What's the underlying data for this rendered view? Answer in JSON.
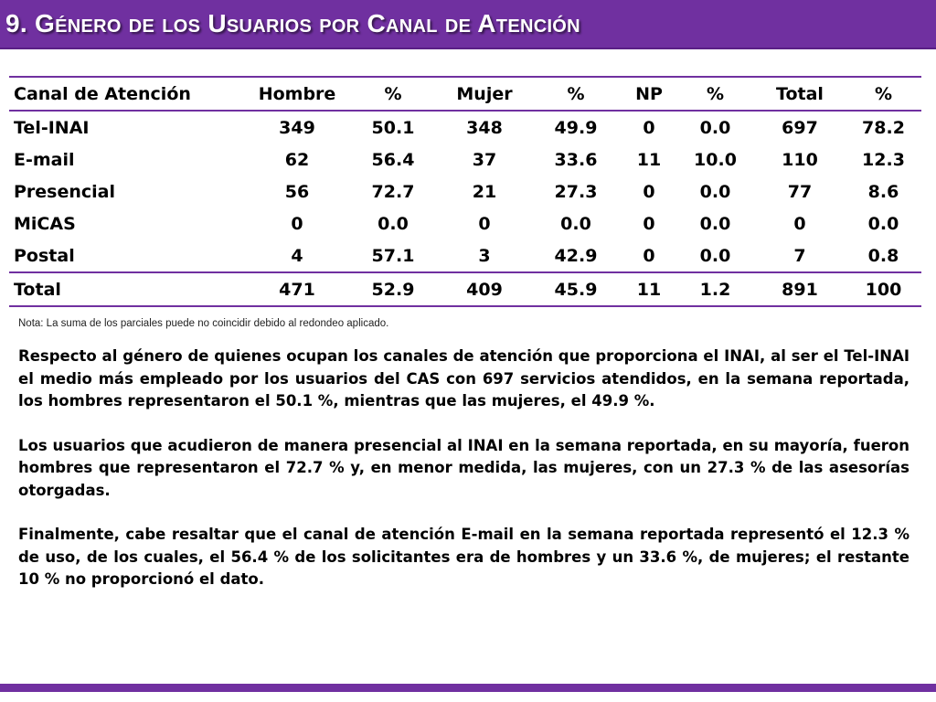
{
  "title": "9. Género de los Usuarios por Canal de Atención",
  "table": {
    "headers": [
      "Canal de Atención",
      "Hombre",
      "%",
      "Mujer",
      "%",
      "NP",
      "%",
      "Total",
      "%"
    ],
    "rows": [
      [
        "Tel-INAI",
        "349",
        "50.1",
        "348",
        "49.9",
        "0",
        "0.0",
        "697",
        "78.2"
      ],
      [
        "E-mail",
        "62",
        "56.4",
        "37",
        "33.6",
        "11",
        "10.0",
        "110",
        "12.3"
      ],
      [
        "Presencial",
        "56",
        "72.7",
        "21",
        "27.3",
        "0",
        "0.0",
        "77",
        "8.6"
      ],
      [
        "MiCAS",
        "0",
        "0.0",
        "0",
        "0.0",
        "0",
        "0.0",
        "0",
        "0.0"
      ],
      [
        "Postal",
        "4",
        "57.1",
        "3",
        "42.9",
        "0",
        "0.0",
        "7",
        "0.8"
      ]
    ],
    "total": [
      "Total",
      "471",
      "52.9",
      "409",
      "45.9",
      "11",
      "1.2",
      "891",
      "100"
    ]
  },
  "note": "Nota: La suma de los parciales puede no coincidir debido al redondeo aplicado.",
  "paragraphs": [
    "Respecto al género de quienes ocupan los canales de atención que proporciona el INAI, al ser el Tel-INAI el medio más empleado por los usuarios del CAS con 697 servicios atendidos, en la semana reportada, los hombres representaron el 50.1 %, mientras que las mujeres, el 49.9 %.",
    "Los usuarios que acudieron de manera presencial al INAI en la semana reportada, en su mayoría, fueron hombres que representaron el 72.7 % y, en menor medida, las mujeres, con un 27.3 % de las asesorías otorgadas.",
    "Finalmente, cabe resaltar que el canal de atención E-mail en la semana reportada representó el 12.3 % de uso, de los cuales, el 56.4 % de los solicitantes era de hombres y un 33.6 %, de mujeres; el restante 10 % no proporcionó el dato."
  ],
  "colors": {
    "accent": "#7030a0"
  }
}
